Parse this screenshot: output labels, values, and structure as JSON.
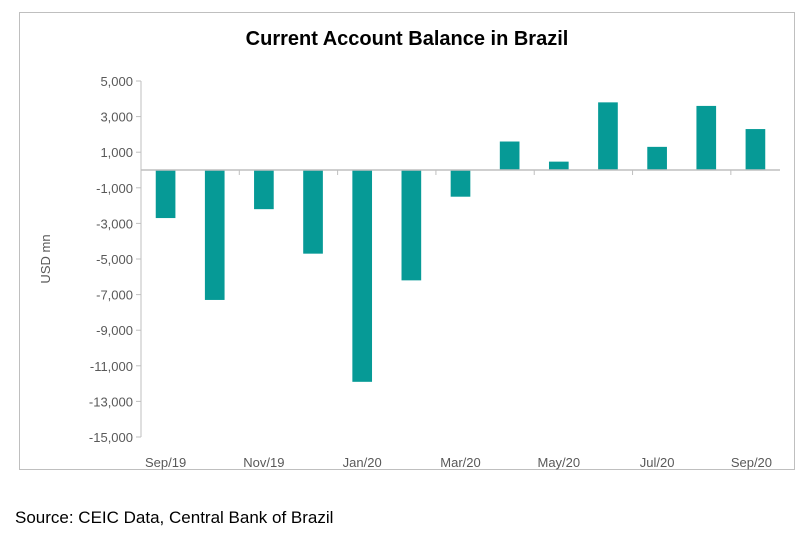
{
  "chart_data": {
    "type": "bar",
    "title": "Current Account Balance in Brazil",
    "xlabel": "",
    "ylabel": "USD mn",
    "ylim": [
      -15000,
      5000
    ],
    "yticks": [
      "5,000",
      "3,000",
      "1,000",
      "-1,000",
      "-3,000",
      "-5,000",
      "-7,000",
      "-9,000",
      "-11,000",
      "-13,000",
      "-15,000"
    ],
    "ytick_values": [
      5000,
      3000,
      1000,
      -1000,
      -3000,
      -5000,
      -7000,
      -9000,
      -11000,
      -13000,
      -15000
    ],
    "categories": [
      "Sep/19",
      "Oct/19",
      "Nov/19",
      "Dec/19",
      "Jan/20",
      "Feb/20",
      "Mar/20",
      "Apr/20",
      "May/20",
      "Jun/20",
      "Jul/20",
      "Aug/20",
      "Sep/20"
    ],
    "xtick_labels_shown": [
      "Sep/19",
      "Nov/19",
      "Jan/20",
      "Mar/20",
      "May/20",
      "Jul/20",
      "Sep/20"
    ],
    "values": [
      -2700,
      -7300,
      -2200,
      -4700,
      -11900,
      -6200,
      -1500,
      1600,
      470,
      3800,
      1300,
      3600,
      2300
    ],
    "color": "#069a96",
    "grid": false,
    "legend": "none"
  },
  "source": "Source: CEIC Data, Central Bank of Brazil"
}
